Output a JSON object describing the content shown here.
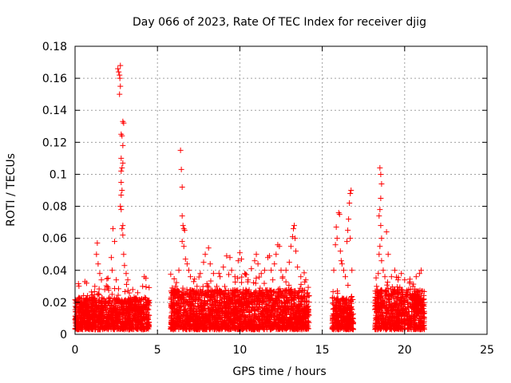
{
  "chart_data": {
    "type": "scatter",
    "title": "Day 066 of 2023, Rate Of TEC Index for receiver djig",
    "xlabel": "GPS time / hours",
    "ylabel": "ROTI / TECUs",
    "xlim": [
      0,
      25
    ],
    "ylim": [
      0,
      0.18
    ],
    "xticks": [
      0,
      5,
      10,
      15,
      20,
      25
    ],
    "xtick_labels": [
      "0",
      "5",
      "10",
      "15",
      "20",
      "25"
    ],
    "yticks": [
      0,
      0.02,
      0.04,
      0.06,
      0.08,
      0.1,
      0.12,
      0.14,
      0.16,
      0.18
    ],
    "ytick_labels": [
      "0",
      "0.02",
      "0.04",
      "0.06",
      "0.08",
      "0.1",
      "0.12",
      "0.14",
      "0.16",
      "0.18"
    ],
    "grid": true,
    "marker": "+",
    "color": "#ff0000",
    "segments": [
      {
        "x_start": 0.0,
        "x_end": 4.5,
        "base_max": 0.02
      },
      {
        "x_start": 5.8,
        "x_end": 14.2,
        "base_max": 0.025
      },
      {
        "x_start": 15.6,
        "x_end": 16.9,
        "base_max": 0.02
      },
      {
        "x_start": 18.2,
        "x_end": 21.2,
        "base_max": 0.025
      }
    ],
    "points": [
      [
        0.15,
        0.02
      ],
      [
        0.3,
        0.016
      ],
      [
        0.5,
        0.018
      ],
      [
        0.6,
        0.033
      ],
      [
        0.7,
        0.032
      ],
      [
        0.9,
        0.022
      ],
      [
        1.2,
        0.03
      ],
      [
        1.3,
        0.05
      ],
      [
        1.35,
        0.057
      ],
      [
        1.4,
        0.044
      ],
      [
        1.5,
        0.038
      ],
      [
        1.6,
        0.034
      ],
      [
        1.8,
        0.028
      ],
      [
        2.0,
        0.035
      ],
      [
        2.2,
        0.048
      ],
      [
        2.25,
        0.04
      ],
      [
        2.3,
        0.066
      ],
      [
        2.4,
        0.058
      ],
      [
        2.5,
        0.034
      ],
      [
        2.6,
        0.166
      ],
      [
        2.65,
        0.164
      ],
      [
        2.7,
        0.162
      ],
      [
        2.72,
        0.16
      ],
      [
        2.75,
        0.168
      ],
      [
        2.7,
        0.15
      ],
      [
        2.75,
        0.155
      ],
      [
        2.8,
        0.125
      ],
      [
        2.85,
        0.124
      ],
      [
        2.9,
        0.118
      ],
      [
        2.8,
        0.11
      ],
      [
        2.9,
        0.107
      ],
      [
        2.85,
        0.104
      ],
      [
        2.8,
        0.102
      ],
      [
        2.9,
        0.133
      ],
      [
        2.95,
        0.132
      ],
      [
        2.8,
        0.095
      ],
      [
        2.85,
        0.09
      ],
      [
        2.8,
        0.087
      ],
      [
        2.75,
        0.08
      ],
      [
        2.8,
        0.078
      ],
      [
        2.9,
        0.068
      ],
      [
        2.85,
        0.066
      ],
      [
        2.9,
        0.062
      ],
      [
        2.95,
        0.05
      ],
      [
        3.0,
        0.043
      ],
      [
        3.1,
        0.038
      ],
      [
        3.2,
        0.034
      ],
      [
        3.5,
        0.028
      ],
      [
        3.8,
        0.026
      ],
      [
        4.1,
        0.03
      ],
      [
        4.2,
        0.036
      ],
      [
        4.3,
        0.035
      ],
      [
        5.9,
        0.029
      ],
      [
        6.1,
        0.03
      ],
      [
        6.3,
        0.04
      ],
      [
        6.4,
        0.115
      ],
      [
        6.45,
        0.103
      ],
      [
        6.5,
        0.092
      ],
      [
        6.5,
        0.074
      ],
      [
        6.55,
        0.068
      ],
      [
        6.6,
        0.066
      ],
      [
        6.65,
        0.065
      ],
      [
        6.5,
        0.058
      ],
      [
        6.6,
        0.055
      ],
      [
        6.7,
        0.047
      ],
      [
        6.8,
        0.044
      ],
      [
        6.9,
        0.04
      ],
      [
        7.0,
        0.036
      ],
      [
        7.2,
        0.033
      ],
      [
        7.4,
        0.03
      ],
      [
        7.6,
        0.038
      ],
      [
        7.8,
        0.045
      ],
      [
        7.9,
        0.05
      ],
      [
        8.1,
        0.054
      ],
      [
        8.2,
        0.044
      ],
      [
        8.4,
        0.038
      ],
      [
        8.6,
        0.03
      ],
      [
        8.8,
        0.036
      ],
      [
        9.0,
        0.042
      ],
      [
        9.2,
        0.049
      ],
      [
        9.4,
        0.048
      ],
      [
        9.5,
        0.04
      ],
      [
        9.7,
        0.036
      ],
      [
        9.9,
        0.046
      ],
      [
        10.0,
        0.051
      ],
      [
        10.1,
        0.047
      ],
      [
        10.3,
        0.038
      ],
      [
        10.5,
        0.034
      ],
      [
        10.7,
        0.041
      ],
      [
        10.9,
        0.046
      ],
      [
        11.0,
        0.05
      ],
      [
        11.1,
        0.044
      ],
      [
        11.3,
        0.038
      ],
      [
        11.5,
        0.04
      ],
      [
        11.7,
        0.048
      ],
      [
        11.8,
        0.049
      ],
      [
        11.9,
        0.04
      ],
      [
        12.0,
        0.034
      ],
      [
        12.1,
        0.044
      ],
      [
        12.2,
        0.05
      ],
      [
        12.3,
        0.056
      ],
      [
        12.4,
        0.055
      ],
      [
        12.5,
        0.04
      ],
      [
        12.6,
        0.036
      ],
      [
        12.8,
        0.04
      ],
      [
        13.0,
        0.045
      ],
      [
        13.1,
        0.055
      ],
      [
        13.2,
        0.061
      ],
      [
        13.25,
        0.066
      ],
      [
        13.3,
        0.068
      ],
      [
        13.35,
        0.06
      ],
      [
        13.4,
        0.052
      ],
      [
        13.5,
        0.042
      ],
      [
        13.7,
        0.036
      ],
      [
        14.0,
        0.034
      ],
      [
        15.7,
        0.04
      ],
      [
        15.8,
        0.056
      ],
      [
        15.85,
        0.067
      ],
      [
        15.9,
        0.06
      ],
      [
        16.0,
        0.076
      ],
      [
        16.05,
        0.075
      ],
      [
        16.1,
        0.052
      ],
      [
        16.15,
        0.046
      ],
      [
        16.2,
        0.044
      ],
      [
        16.3,
        0.04
      ],
      [
        16.4,
        0.036
      ],
      [
        16.5,
        0.058
      ],
      [
        16.55,
        0.065
      ],
      [
        16.6,
        0.072
      ],
      [
        16.65,
        0.082
      ],
      [
        16.7,
        0.088
      ],
      [
        16.75,
        0.09
      ],
      [
        16.7,
        0.06
      ],
      [
        16.8,
        0.04
      ],
      [
        18.3,
        0.03
      ],
      [
        18.4,
        0.038
      ],
      [
        18.45,
        0.05
      ],
      [
        18.5,
        0.104
      ],
      [
        18.55,
        0.1
      ],
      [
        18.6,
        0.094
      ],
      [
        18.55,
        0.085
      ],
      [
        18.5,
        0.078
      ],
      [
        18.45,
        0.074
      ],
      [
        18.55,
        0.068
      ],
      [
        18.6,
        0.06
      ],
      [
        18.5,
        0.055
      ],
      [
        18.6,
        0.046
      ],
      [
        18.7,
        0.04
      ],
      [
        18.8,
        0.036
      ],
      [
        18.9,
        0.064
      ],
      [
        19.0,
        0.05
      ],
      [
        19.2,
        0.036
      ],
      [
        19.4,
        0.04
      ],
      [
        19.6,
        0.034
      ],
      [
        19.8,
        0.038
      ],
      [
        20.0,
        0.034
      ],
      [
        20.3,
        0.032
      ],
      [
        20.5,
        0.03
      ],
      [
        20.7,
        0.036
      ],
      [
        20.9,
        0.038
      ],
      [
        21.0,
        0.04
      ]
    ]
  }
}
